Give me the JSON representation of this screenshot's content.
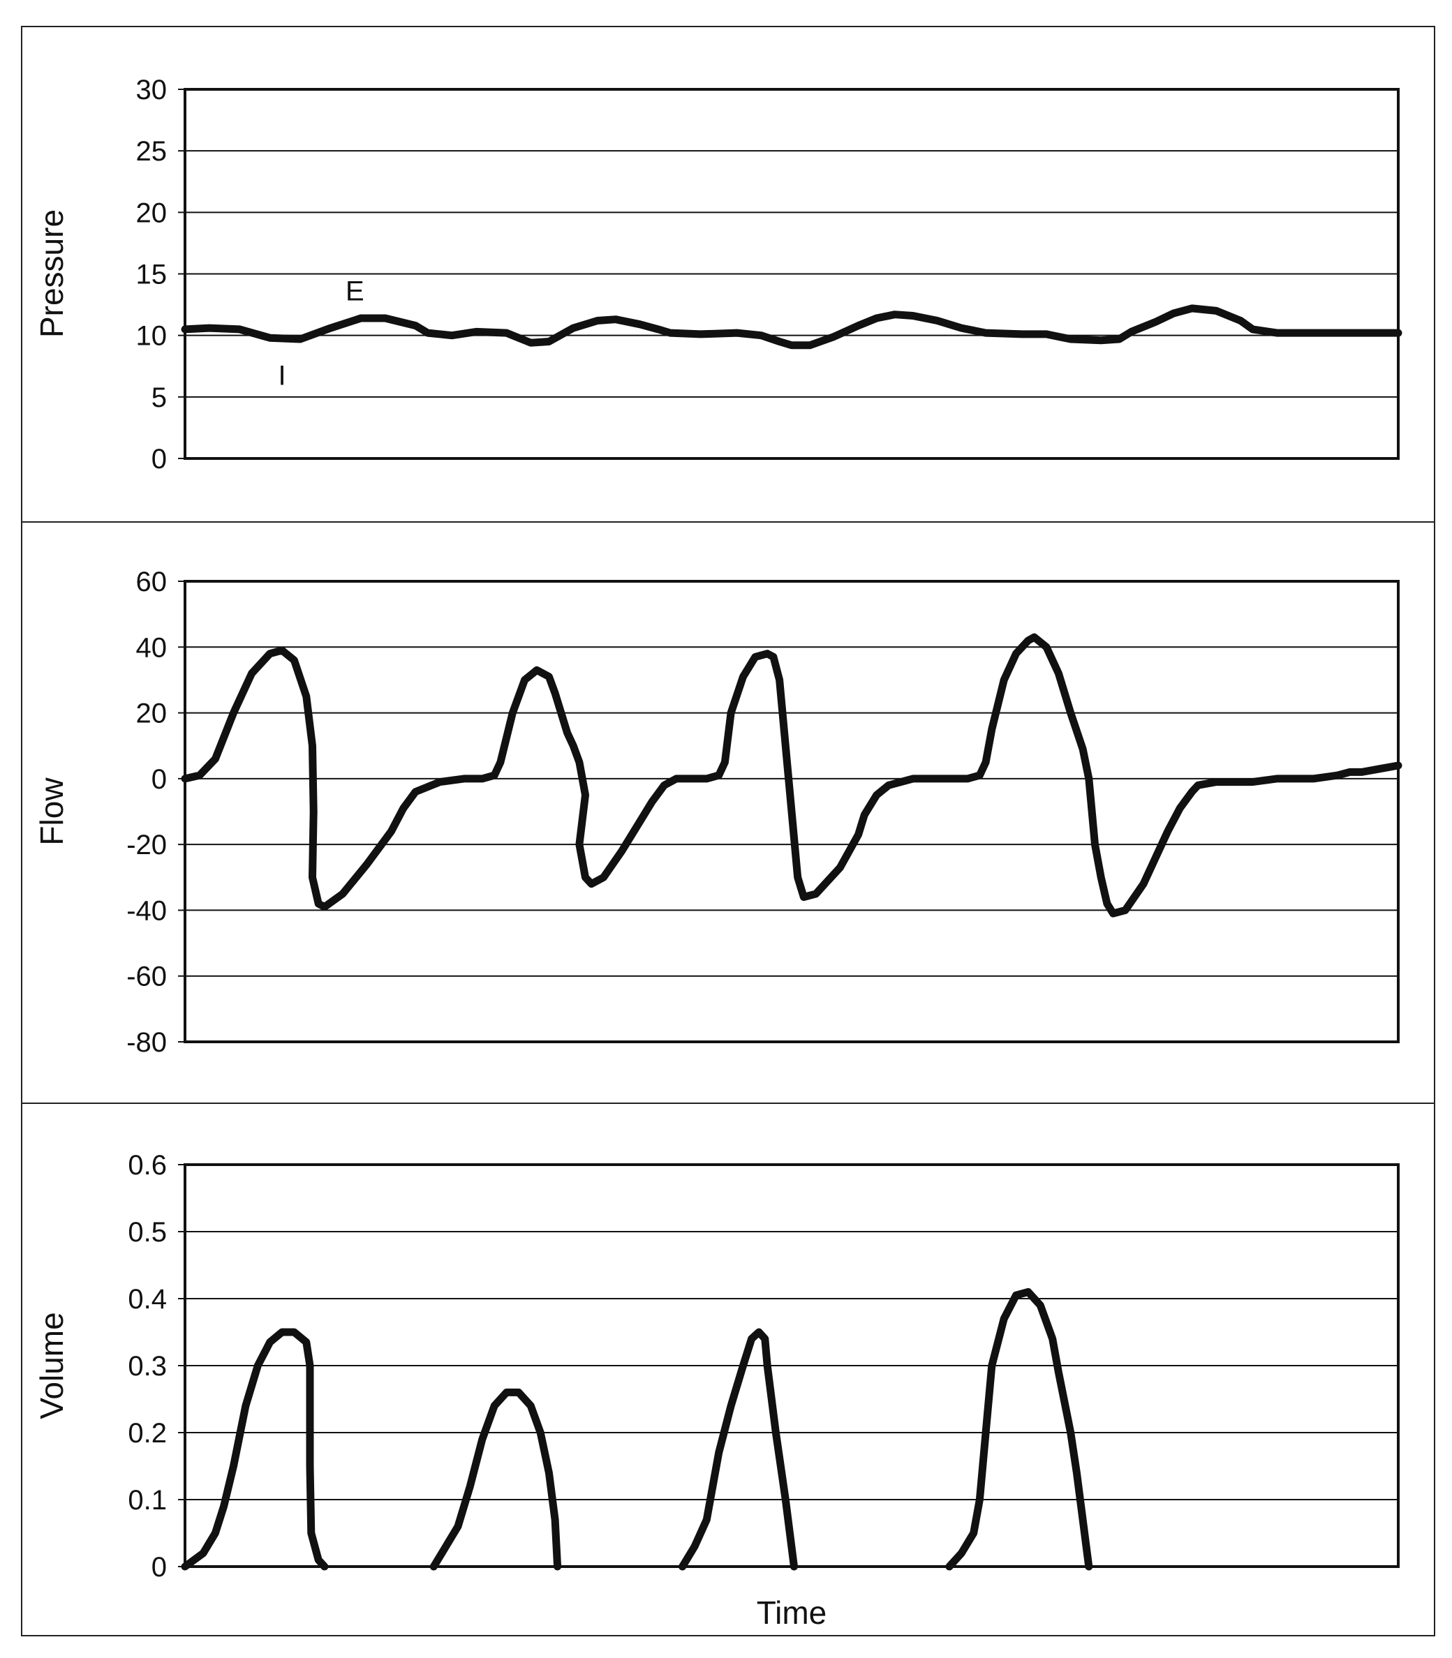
{
  "chart_data": [
    {
      "type": "line",
      "id": "pressure",
      "title": "",
      "xlabel": "",
      "ylabel": "Pressure",
      "ylim": [
        0,
        30
      ],
      "yticks": [
        0,
        5,
        10,
        15,
        20,
        25,
        30
      ],
      "ytick_labels": [
        "0",
        "5",
        "10",
        "15",
        "20",
        "25",
        "30"
      ],
      "grid": true,
      "annotations": [
        {
          "text": "E",
          "x": 0.14,
          "y": 11.6
        },
        {
          "text": "I",
          "x": 0.08,
          "y": 9.5
        }
      ],
      "series": [
        {
          "points": [
            [
              0,
              10.5
            ],
            [
              0.02,
              10.6
            ],
            [
              0.045,
              10.5
            ],
            [
              0.07,
              9.8
            ],
            [
              0.095,
              9.7
            ],
            [
              0.12,
              10.6
            ],
            [
              0.145,
              11.4
            ],
            [
              0.165,
              11.4
            ],
            [
              0.19,
              10.8
            ],
            [
              0.2,
              10.2
            ],
            [
              0.22,
              10.0
            ],
            [
              0.24,
              10.3
            ],
            [
              0.265,
              10.2
            ],
            [
              0.285,
              9.4
            ],
            [
              0.3,
              9.5
            ],
            [
              0.32,
              10.6
            ],
            [
              0.34,
              11.2
            ],
            [
              0.355,
              11.3
            ],
            [
              0.375,
              10.9
            ],
            [
              0.39,
              10.5
            ],
            [
              0.4,
              10.2
            ],
            [
              0.425,
              10.1
            ],
            [
              0.455,
              10.2
            ],
            [
              0.475,
              10.0
            ],
            [
              0.49,
              9.5
            ],
            [
              0.5,
              9.2
            ],
            [
              0.515,
              9.2
            ],
            [
              0.535,
              9.9
            ],
            [
              0.555,
              10.8
            ],
            [
              0.57,
              11.4
            ],
            [
              0.585,
              11.7
            ],
            [
              0.6,
              11.6
            ],
            [
              0.62,
              11.2
            ],
            [
              0.64,
              10.6
            ],
            [
              0.66,
              10.2
            ],
            [
              0.69,
              10.1
            ],
            [
              0.71,
              10.1
            ],
            [
              0.73,
              9.7
            ],
            [
              0.755,
              9.6
            ],
            [
              0.77,
              9.7
            ],
            [
              0.78,
              10.3
            ],
            [
              0.8,
              11.1
            ],
            [
              0.815,
              11.8
            ],
            [
              0.83,
              12.2
            ],
            [
              0.85,
              12.0
            ],
            [
              0.87,
              11.2
            ],
            [
              0.88,
              10.5
            ],
            [
              0.9,
              10.2
            ],
            [
              0.95,
              10.2
            ],
            [
              1.0,
              10.2
            ]
          ]
        }
      ]
    },
    {
      "type": "line",
      "id": "flow",
      "title": "",
      "xlabel": "",
      "ylabel": "Flow",
      "ylim": [
        -80,
        60
      ],
      "yticks": [
        -80,
        -60,
        -40,
        -20,
        0,
        20,
        40,
        60
      ],
      "ytick_labels": [
        "-80",
        "-60",
        "-40",
        "-20",
        "0",
        "20",
        "40",
        "60"
      ],
      "grid": true,
      "series": [
        {
          "points": [
            [
              0,
              0
            ],
            [
              0.012,
              1
            ],
            [
              0.025,
              6
            ],
            [
              0.04,
              20
            ],
            [
              0.055,
              32
            ],
            [
              0.07,
              38
            ],
            [
              0.08,
              39
            ],
            [
              0.09,
              36
            ],
            [
              0.1,
              25
            ],
            [
              0.105,
              10
            ],
            [
              0.106,
              -10
            ],
            [
              0.105,
              -30
            ],
            [
              0.11,
              -38
            ],
            [
              0.115,
              -39
            ],
            [
              0.13,
              -35
            ],
            [
              0.15,
              -26
            ],
            [
              0.17,
              -16
            ],
            [
              0.18,
              -9
            ],
            [
              0.19,
              -4
            ],
            [
              0.21,
              -1
            ],
            [
              0.23,
              0
            ],
            [
              0.245,
              0
            ],
            [
              0.255,
              1
            ],
            [
              0.26,
              5
            ],
            [
              0.27,
              20
            ],
            [
              0.28,
              30
            ],
            [
              0.29,
              33
            ],
            [
              0.3,
              31
            ],
            [
              0.305,
              26
            ],
            [
              0.315,
              14
            ],
            [
              0.32,
              10
            ],
            [
              0.325,
              5
            ],
            [
              0.33,
              -5
            ],
            [
              0.325,
              -20
            ],
            [
              0.33,
              -30
            ],
            [
              0.335,
              -32
            ],
            [
              0.345,
              -30
            ],
            [
              0.36,
              -22
            ],
            [
              0.375,
              -13
            ],
            [
              0.385,
              -7
            ],
            [
              0.395,
              -2
            ],
            [
              0.405,
              0
            ],
            [
              0.43,
              0
            ],
            [
              0.44,
              1
            ],
            [
              0.445,
              5
            ],
            [
              0.45,
              20
            ],
            [
              0.46,
              31
            ],
            [
              0.47,
              37
            ],
            [
              0.48,
              38
            ],
            [
              0.485,
              37
            ],
            [
              0.49,
              30
            ],
            [
              0.495,
              10
            ],
            [
              0.5,
              -10
            ],
            [
              0.505,
              -30
            ],
            [
              0.51,
              -36
            ],
            [
              0.52,
              -35
            ],
            [
              0.54,
              -27
            ],
            [
              0.555,
              -17
            ],
            [
              0.56,
              -11
            ],
            [
              0.57,
              -5
            ],
            [
              0.58,
              -2
            ],
            [
              0.6,
              0
            ],
            [
              0.63,
              0
            ],
            [
              0.645,
              0
            ],
            [
              0.655,
              1
            ],
            [
              0.66,
              5
            ],
            [
              0.665,
              15
            ],
            [
              0.675,
              30
            ],
            [
              0.685,
              38
            ],
            [
              0.695,
              42
            ],
            [
              0.7,
              43
            ],
            [
              0.71,
              40
            ],
            [
              0.72,
              32
            ],
            [
              0.73,
              20
            ],
            [
              0.74,
              9
            ],
            [
              0.745,
              0
            ],
            [
              0.75,
              -20
            ],
            [
              0.755,
              -30
            ],
            [
              0.76,
              -38
            ],
            [
              0.765,
              -41
            ],
            [
              0.775,
              -40
            ],
            [
              0.79,
              -32
            ],
            [
              0.8,
              -24
            ],
            [
              0.81,
              -16
            ],
            [
              0.82,
              -9
            ],
            [
              0.83,
              -4
            ],
            [
              0.835,
              -2
            ],
            [
              0.85,
              -1
            ],
            [
              0.87,
              -1
            ],
            [
              0.88,
              -1
            ],
            [
              0.9,
              0
            ],
            [
              0.93,
              0
            ],
            [
              0.95,
              1
            ],
            [
              0.96,
              2
            ],
            [
              0.97,
              2
            ],
            [
              0.985,
              3
            ],
            [
              1.0,
              4
            ]
          ]
        }
      ]
    },
    {
      "type": "line",
      "id": "volume",
      "title": "",
      "xlabel": "Time",
      "ylabel": "Volume",
      "ylim": [
        0,
        0.6
      ],
      "yticks": [
        0,
        0.1,
        0.2,
        0.3,
        0.4,
        0.5,
        0.6
      ],
      "ytick_labels": [
        "0",
        "0.1",
        "0.2",
        "0.3",
        "0.4",
        "0.5",
        "0.6"
      ],
      "grid": true,
      "series": [
        {
          "segments": [
            [
              [
                0,
                0
              ],
              [
                0.015,
                0.02
              ],
              [
                0.025,
                0.05
              ],
              [
                0.032,
                0.09
              ],
              [
                0.04,
                0.15
              ],
              [
                0.05,
                0.24
              ],
              [
                0.06,
                0.3
              ],
              [
                0.07,
                0.335
              ],
              [
                0.08,
                0.35
              ],
              [
                0.09,
                0.35
              ],
              [
                0.1,
                0.335
              ],
              [
                0.103,
                0.3
              ],
              [
                0.103,
                0.15
              ],
              [
                0.104,
                0.05
              ],
              [
                0.11,
                0.01
              ],
              [
                0.115,
                0
              ]
            ],
            [
              [
                0.205,
                0
              ],
              [
                0.215,
                0.03
              ],
              [
                0.225,
                0.06
              ],
              [
                0.235,
                0.12
              ],
              [
                0.245,
                0.19
              ],
              [
                0.255,
                0.24
              ],
              [
                0.265,
                0.26
              ],
              [
                0.275,
                0.26
              ],
              [
                0.285,
                0.24
              ],
              [
                0.293,
                0.2
              ],
              [
                0.3,
                0.14
              ],
              [
                0.305,
                0.07
              ],
              [
                0.307,
                0
              ]
            ],
            [
              [
                0.41,
                0
              ],
              [
                0.42,
                0.03
              ],
              [
                0.43,
                0.07
              ],
              [
                0.435,
                0.12
              ],
              [
                0.44,
                0.17
              ],
              [
                0.45,
                0.24
              ],
              [
                0.46,
                0.3
              ],
              [
                0.467,
                0.34
              ],
              [
                0.473,
                0.35
              ],
              [
                0.478,
                0.34
              ],
              [
                0.48,
                0.3
              ],
              [
                0.487,
                0.2
              ],
              [
                0.495,
                0.1
              ],
              [
                0.502,
                0
              ]
            ],
            [
              [
                0.63,
                0
              ],
              [
                0.64,
                0.02
              ],
              [
                0.65,
                0.05
              ],
              [
                0.655,
                0.1
              ],
              [
                0.66,
                0.2
              ],
              [
                0.665,
                0.3
              ],
              [
                0.675,
                0.37
              ],
              [
                0.685,
                0.405
              ],
              [
                0.695,
                0.41
              ],
              [
                0.705,
                0.39
              ],
              [
                0.715,
                0.34
              ],
              [
                0.72,
                0.29
              ],
              [
                0.73,
                0.2
              ],
              [
                0.735,
                0.14
              ],
              [
                0.74,
                0.07
              ],
              [
                0.745,
                0
              ]
            ]
          ]
        }
      ]
    }
  ]
}
